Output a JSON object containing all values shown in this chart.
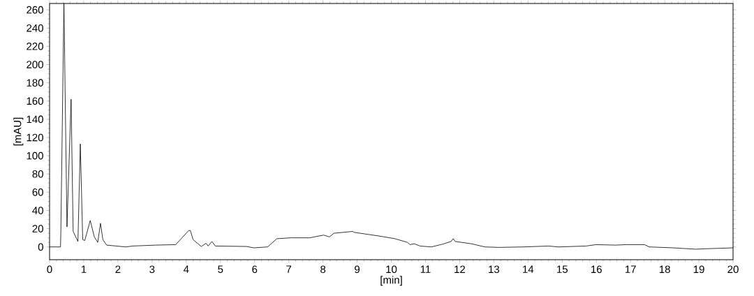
{
  "chart_data": {
    "type": "line",
    "xlabel": "[min]",
    "ylabel": "[mAU]",
    "x": [
      0,
      0.32,
      0.33,
      0.42,
      0.51,
      0.63,
      0.69,
      0.83,
      0.9,
      0.97,
      1.03,
      1.19,
      1.31,
      1.41,
      1.49,
      1.56,
      1.67,
      2.23,
      2.43,
      3.11,
      3.69,
      3.9,
      4.07,
      4.12,
      4.2,
      4.44,
      4.58,
      4.64,
      4.75,
      4.85,
      5.77,
      5.97,
      6.38,
      6.65,
      7.06,
      7.61,
      8.02,
      8.19,
      8.32,
      8.87,
      8.91,
      9.64,
      10.11,
      10.47,
      10.55,
      10.67,
      10.84,
      11.17,
      11.5,
      11.75,
      11.81,
      11.87,
      12.34,
      12.74,
      13.14,
      13.87,
      14.6,
      14.89,
      15.7,
      15.99,
      16.57,
      16.86,
      17.41,
      17.55,
      18.25,
      18.91,
      19.2,
      20
    ],
    "values": [
      0,
      0,
      16,
      267,
      22,
      162,
      17,
      6,
      113,
      8,
      7,
      29,
      11,
      5,
      26,
      8,
      2,
      0,
      1,
      2,
      2.5,
      11,
      18,
      18,
      8,
      0.5,
      4,
      1,
      6,
      1,
      0.5,
      -1,
      0,
      9,
      10,
      10,
      13,
      11,
      15,
      17,
      16,
      12,
      9,
      5,
      2.5,
      3.5,
      1,
      0,
      3,
      6,
      9,
      6,
      3.5,
      0,
      -0.5,
      0,
      1,
      0,
      1,
      2.5,
      2,
      2.5,
      2.5,
      0,
      -1,
      -2.5,
      -2,
      -1
    ],
    "color": "#000000",
    "xlim": [
      0,
      20
    ],
    "ylim": [
      -14,
      267
    ],
    "xticks": [
      0,
      1,
      2,
      3,
      4,
      5,
      6,
      7,
      8,
      9,
      10,
      11,
      12,
      13,
      14,
      15,
      16,
      17,
      18,
      19,
      20
    ],
    "yticks": [
      0,
      20,
      40,
      60,
      80,
      100,
      120,
      140,
      160,
      180,
      200,
      220,
      240,
      260
    ],
    "grid": false
  }
}
